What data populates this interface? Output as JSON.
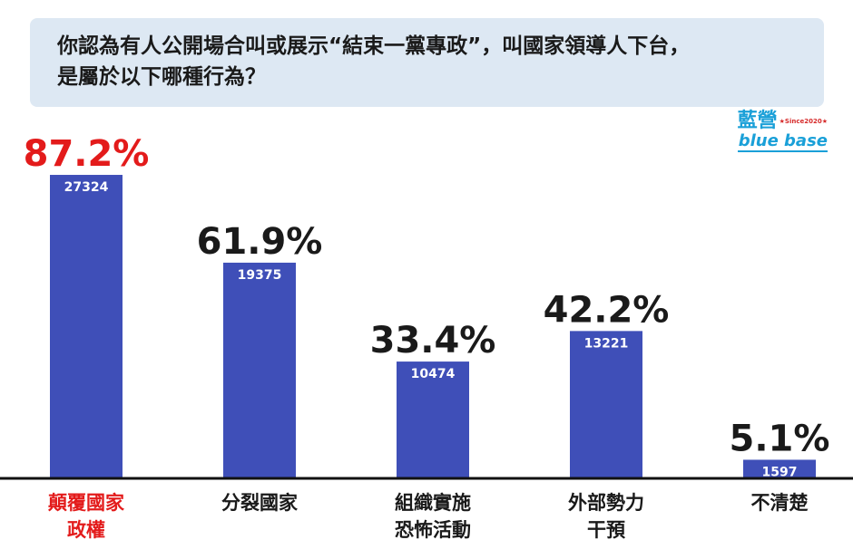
{
  "question": {
    "line1": "你認為有人公開場合叫或展示“結束一黨專政”，叫國家領導人下台，",
    "line2": "是屬於以下哪種行為？"
  },
  "logo": {
    "cn": "藍營",
    "since": "★Since2020★",
    "en": "blue base"
  },
  "colors": {
    "bar": "#3f4fb8",
    "highlight": "#e31b1b",
    "text": "#1a1a1a",
    "question_bg": "#dde8f3"
  },
  "chart_data": {
    "type": "bar",
    "title": "",
    "xlabel": "",
    "ylabel": "",
    "ylim": [
      0,
      100
    ],
    "grid": false,
    "categories": [
      [
        "顛覆國家",
        "政權"
      ],
      [
        "分裂國家"
      ],
      [
        "組織實施",
        "恐怖活動"
      ],
      [
        "外部勢力",
        "干預"
      ],
      [
        "不清楚"
      ]
    ],
    "percent_labels": [
      "87.2%",
      "61.9%",
      "33.4%",
      "42.2%",
      "5.1%"
    ],
    "values": [
      87.2,
      61.9,
      33.4,
      42.2,
      5.1
    ],
    "counts": [
      27324,
      19375,
      10474,
      13221,
      1597
    ],
    "highlight_index": 0
  }
}
